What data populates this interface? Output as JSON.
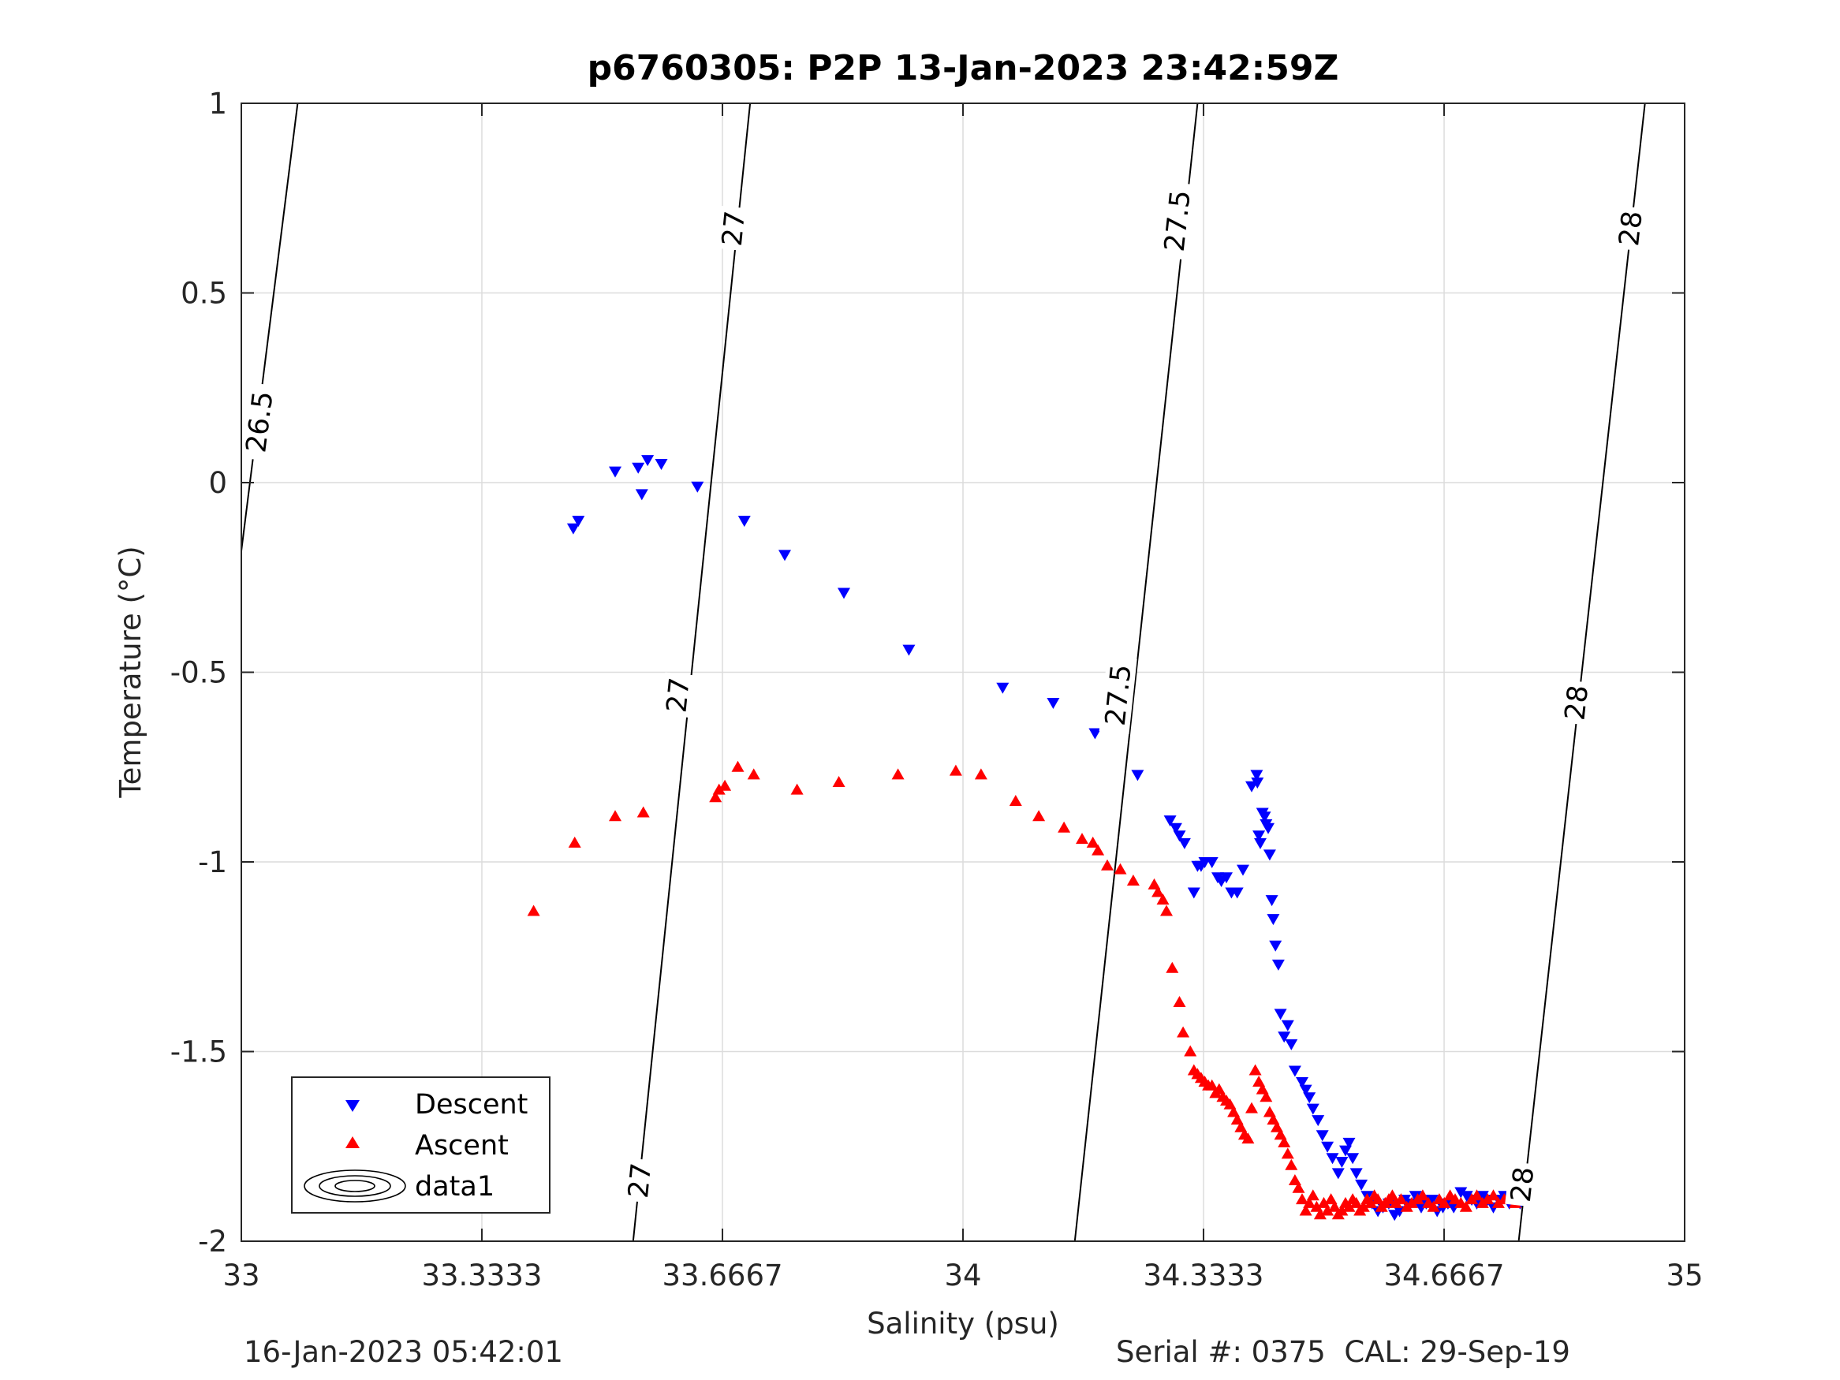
{
  "figure": {
    "footer_left": "16-Jan-2023 05:42:01",
    "footer_right": "Serial #: 0375  CAL: 29-Sep-19"
  },
  "chart_data": {
    "type": "scatter",
    "title": "p6760305: P2P 13-Jan-2023 23:42:59Z",
    "xlabel": "Salinity (psu)",
    "ylabel": "Temperature (°C)",
    "xlim": [
      33,
      35
    ],
    "ylim": [
      -2,
      1
    ],
    "xticks": [
      33,
      33.3333,
      33.6667,
      34,
      34.3333,
      34.6667,
      35
    ],
    "xtick_labels": [
      "33",
      "33.3333",
      "33.6667",
      "34",
      "34.3333",
      "34.6667",
      "35"
    ],
    "yticks": [
      -2,
      -1.5,
      -1,
      -0.5,
      0,
      0.5,
      1
    ],
    "ytick_labels": [
      "-2",
      "-1.5",
      "-1",
      "-0.5",
      "0",
      "0.5",
      "1"
    ],
    "grid": true,
    "legend": {
      "position": "bottom-left",
      "entries": [
        {
          "label": "Descent",
          "marker": "triangle-down",
          "color": "#0000ff"
        },
        {
          "label": "Ascent",
          "marker": "triangle-up",
          "color": "#ff0000"
        },
        {
          "label": "data1",
          "marker": "contour",
          "color": "#000000"
        }
      ]
    },
    "contours": {
      "name": "data1",
      "color": "#000000",
      "lines": [
        {
          "level": "26.5",
          "points": [
            [
              33.0,
              -0.18
            ],
            [
              33.078,
              1.0
            ]
          ],
          "labels": [
            {
              "x": 33.025,
              "y": 0.16,
              "text": "26.5"
            }
          ]
        },
        {
          "level": "27",
          "points": [
            [
              33.543,
              -2.0
            ],
            [
              33.705,
              1.0
            ]
          ],
          "labels": [
            {
              "x": 33.552,
              "y": -1.84,
              "text": "27"
            },
            {
              "x": 33.605,
              "y": -0.56,
              "text": "27"
            },
            {
              "x": 33.682,
              "y": 0.67,
              "text": "27"
            }
          ]
        },
        {
          "level": "27.5",
          "points": [
            [
              34.155,
              -2.0
            ],
            [
              34.325,
              1.0
            ]
          ],
          "labels": [
            {
              "x": 34.215,
              "y": -0.56,
              "text": "27.5"
            },
            {
              "x": 34.297,
              "y": 0.69,
              "text": "27.5"
            }
          ]
        },
        {
          "level": "28",
          "points": [
            [
              34.77,
              -2.0
            ],
            [
              34.945,
              1.0
            ]
          ],
          "labels": [
            {
              "x": 34.775,
              "y": -1.85,
              "text": "28"
            },
            {
              "x": 34.85,
              "y": -0.58,
              "text": "28"
            },
            {
              "x": 34.925,
              "y": 0.67,
              "text": "28"
            }
          ]
        }
      ]
    },
    "series": [
      {
        "name": "Descent",
        "marker": "triangle-down",
        "color": "#0000ff",
        "x": [
          33.46,
          33.467,
          33.518,
          33.55,
          33.555,
          33.563,
          33.582,
          33.632,
          33.697,
          33.753,
          33.835,
          33.925,
          34.055,
          34.125,
          34.183,
          34.242,
          34.287,
          34.295,
          34.3,
          34.307,
          34.32,
          34.325,
          34.33,
          34.335,
          34.345,
          34.353,
          34.358,
          34.365,
          34.372,
          34.38,
          34.388,
          34.4,
          34.407,
          34.408,
          34.41,
          34.412,
          34.415,
          34.418,
          34.42,
          34.423,
          34.425,
          34.428,
          34.43,
          34.433,
          34.437,
          34.44,
          34.445,
          34.45,
          34.455,
          34.46,
          34.47,
          34.475,
          34.48,
          34.485,
          34.492,
          34.498,
          34.505,
          34.512,
          34.52,
          34.525,
          34.53,
          34.535,
          34.54,
          34.545,
          34.552,
          34.56,
          34.567,
          34.575,
          34.582,
          34.59,
          34.598,
          34.605,
          34.612,
          34.62,
          34.627,
          34.635,
          34.642,
          34.65,
          34.657,
          34.665,
          34.672,
          34.68,
          34.69,
          34.698,
          34.705,
          34.712,
          34.72,
          34.727,
          34.735,
          34.742,
          34.75,
          34.757,
          34.765,
          34.772
        ],
        "y": [
          -0.12,
          -0.1,
          0.03,
          0.04,
          -0.03,
          0.06,
          0.05,
          -0.01,
          -0.1,
          -0.19,
          -0.29,
          -0.44,
          -0.54,
          -0.58,
          -0.66,
          -0.77,
          -0.89,
          -0.91,
          -0.93,
          -0.95,
          -1.08,
          -1.01,
          -1.01,
          -1.0,
          -1.0,
          -1.04,
          -1.05,
          -1.04,
          -1.08,
          -1.08,
          -1.02,
          -0.8,
          -0.77,
          -0.79,
          -0.93,
          -0.95,
          -0.87,
          -0.88,
          -0.9,
          -0.91,
          -0.98,
          -1.1,
          -1.15,
          -1.22,
          -1.27,
          -1.4,
          -1.46,
          -1.43,
          -1.48,
          -1.55,
          -1.58,
          -1.6,
          -1.62,
          -1.65,
          -1.68,
          -1.72,
          -1.75,
          -1.78,
          -1.82,
          -1.79,
          -1.76,
          -1.74,
          -1.78,
          -1.82,
          -1.85,
          -1.88,
          -1.9,
          -1.92,
          -1.91,
          -1.9,
          -1.93,
          -1.92,
          -1.89,
          -1.9,
          -1.88,
          -1.91,
          -1.9,
          -1.89,
          -1.92,
          -1.91,
          -1.9,
          -1.91,
          -1.87,
          -1.88,
          -1.89,
          -1.9,
          -1.88,
          -1.89,
          -1.91,
          -1.89,
          -1.88,
          -1.9,
          -1.89,
          -1.9
        ]
      },
      {
        "name": "Ascent",
        "marker": "triangle-up",
        "color": "#ff0000",
        "x": [
          33.405,
          33.462,
          33.518,
          33.557,
          33.657,
          33.662,
          33.67,
          33.688,
          33.71,
          33.77,
          33.828,
          33.91,
          33.99,
          34.025,
          34.073,
          34.105,
          34.14,
          34.165,
          34.18,
          34.187,
          34.2,
          34.218,
          34.236,
          34.265,
          34.27,
          34.277,
          34.282,
          34.29,
          34.3,
          34.305,
          34.315,
          34.32,
          34.325,
          34.33,
          34.335,
          34.34,
          34.345,
          34.35,
          34.355,
          34.36,
          34.365,
          34.37,
          34.375,
          34.38,
          34.385,
          34.39,
          34.395,
          34.4,
          34.405,
          34.41,
          34.415,
          34.42,
          34.425,
          34.43,
          34.435,
          34.44,
          34.445,
          34.45,
          34.455,
          34.46,
          34.465,
          34.47,
          34.475,
          34.48,
          34.485,
          34.49,
          34.495,
          34.5,
          34.505,
          34.51,
          34.515,
          34.52,
          34.525,
          34.53,
          34.535,
          34.54,
          34.545,
          34.55,
          34.555,
          34.56,
          34.565,
          34.57,
          34.575,
          34.58,
          34.585,
          34.59,
          34.595,
          34.6,
          34.607,
          34.615,
          34.622,
          34.63,
          34.637,
          34.645,
          34.652,
          34.66,
          34.667,
          34.675,
          34.682,
          34.69,
          34.697,
          34.705,
          34.712,
          34.72,
          34.727,
          34.735,
          34.742,
          34.75,
          34.757,
          34.765,
          34.772
        ],
        "y": [
          -1.13,
          -0.95,
          -0.88,
          -0.87,
          -0.83,
          -0.81,
          -0.8,
          -0.75,
          -0.77,
          -0.81,
          -0.79,
          -0.77,
          -0.76,
          -0.77,
          -0.84,
          -0.88,
          -0.91,
          -0.94,
          -0.95,
          -0.97,
          -1.01,
          -1.02,
          -1.05,
          -1.06,
          -1.08,
          -1.1,
          -1.13,
          -1.28,
          -1.37,
          -1.45,
          -1.5,
          -1.55,
          -1.56,
          -1.57,
          -1.58,
          -1.59,
          -1.59,
          -1.61,
          -1.6,
          -1.62,
          -1.63,
          -1.64,
          -1.66,
          -1.68,
          -1.7,
          -1.72,
          -1.73,
          -1.65,
          -1.55,
          -1.58,
          -1.6,
          -1.62,
          -1.66,
          -1.68,
          -1.7,
          -1.72,
          -1.74,
          -1.77,
          -1.8,
          -1.84,
          -1.86,
          -1.89,
          -1.92,
          -1.9,
          -1.88,
          -1.91,
          -1.93,
          -1.9,
          -1.92,
          -1.89,
          -1.91,
          -1.93,
          -1.92,
          -1.9,
          -1.91,
          -1.89,
          -1.9,
          -1.92,
          -1.91,
          -1.89,
          -1.9,
          -1.88,
          -1.89,
          -1.91,
          -1.9,
          -1.89,
          -1.88,
          -1.9,
          -1.89,
          -1.91,
          -1.9,
          -1.89,
          -1.88,
          -1.9,
          -1.91,
          -1.89,
          -1.9,
          -1.88,
          -1.89,
          -1.9,
          -1.91,
          -1.89,
          -1.88,
          -1.9,
          -1.89,
          -1.88,
          -1.9,
          -1.89,
          -1.88,
          -1.9,
          -1.89
        ]
      }
    ]
  }
}
